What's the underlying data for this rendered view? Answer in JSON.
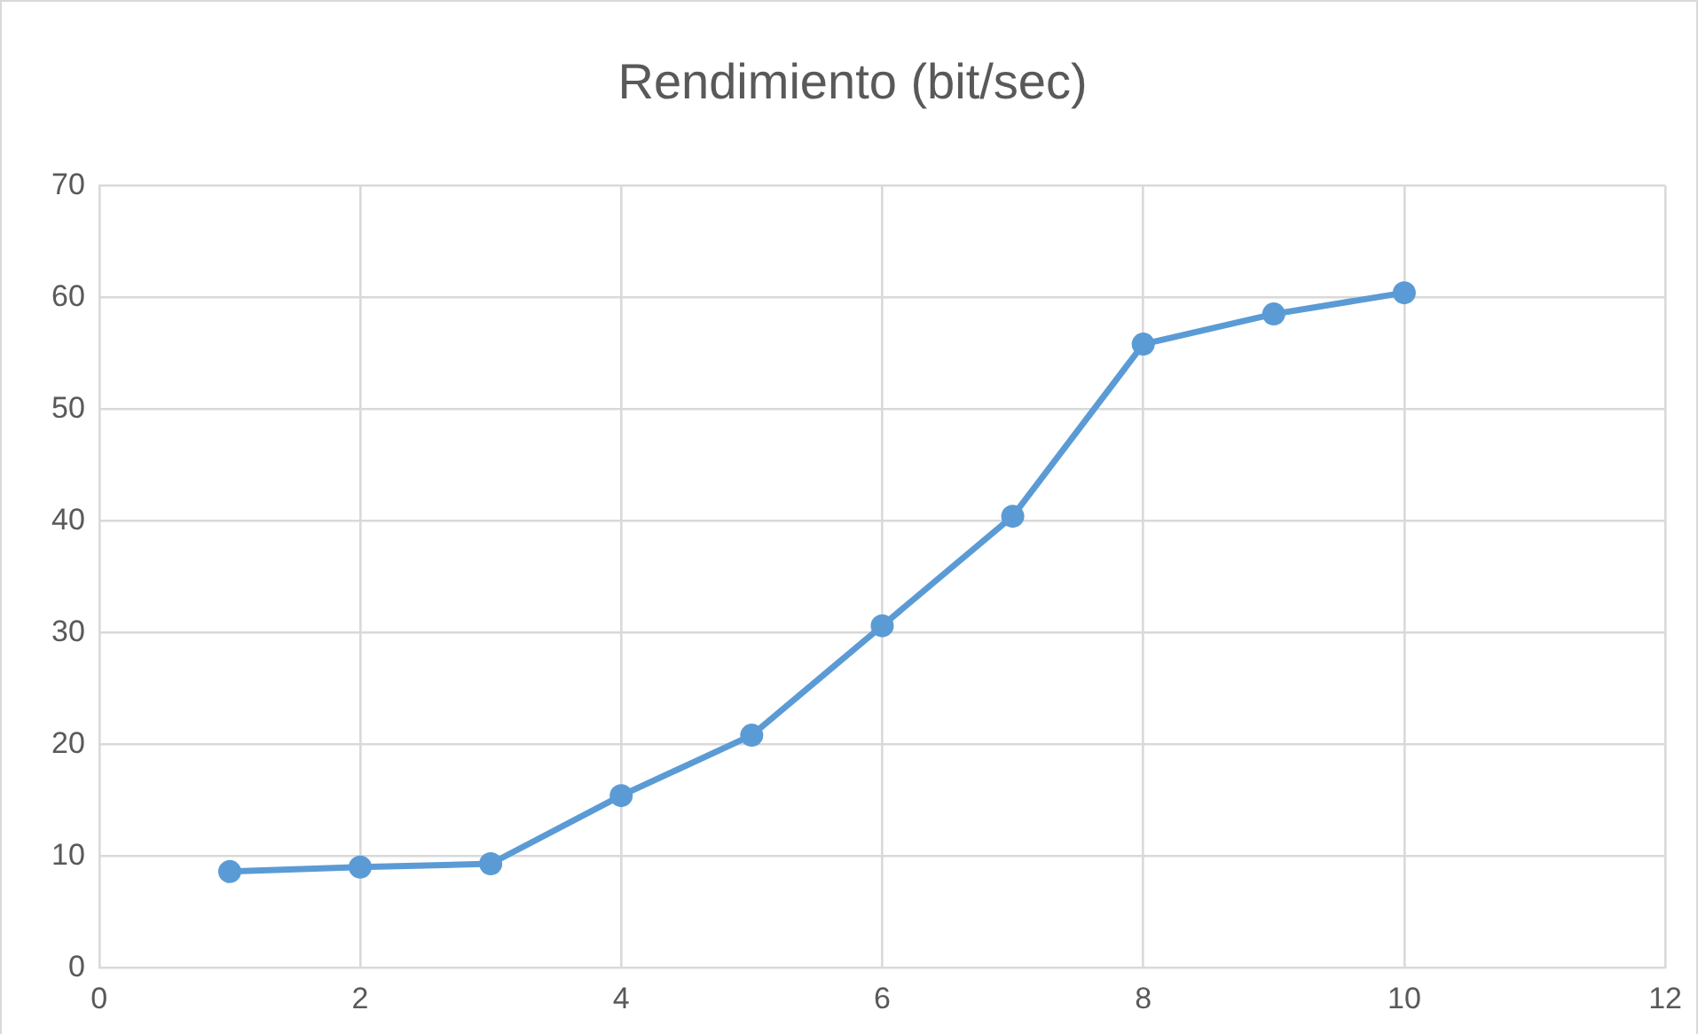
{
  "chart_data": {
    "type": "line",
    "title": "Rendimiento (bit/sec)",
    "x": [
      1,
      2,
      3,
      4,
      5,
      6,
      7,
      8,
      9,
      10
    ],
    "series": [
      {
        "color": "#5b9bd5",
        "values": [
          8.6,
          9.0,
          9.3,
          15.4,
          20.8,
          30.6,
          40.4,
          55.8,
          58.5,
          60.4
        ]
      }
    ],
    "xlim": [
      0,
      12
    ],
    "xticks": [
      0,
      2,
      4,
      6,
      8,
      10,
      12
    ],
    "ylim": [
      0,
      70
    ],
    "yticks": [
      0,
      10,
      20,
      30,
      40,
      50,
      60,
      70
    ],
    "grid": true,
    "legend": false,
    "marker": "circle",
    "line_style": "solid"
  }
}
